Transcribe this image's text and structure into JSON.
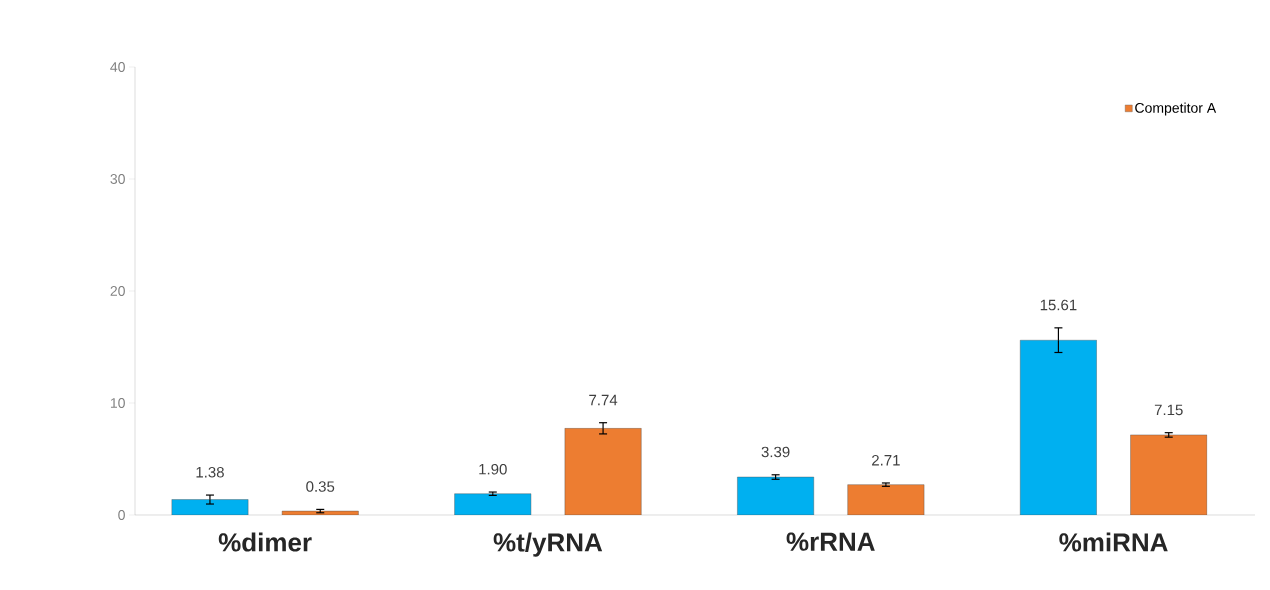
{
  "chart_data": {
    "type": "bar",
    "categories": [
      "%dimer",
      "%t/yRNA",
      "%rRNA",
      "%miRNA"
    ],
    "series": [
      {
        "color": "#00b0f0",
        "values": [
          1.38,
          1.9,
          3.39,
          15.61
        ],
        "errors": [
          0.4,
          0.15,
          0.2,
          1.1
        ],
        "value_labels": [
          "1.38",
          "1.90",
          "3.39",
          "15.61"
        ]
      },
      {
        "name": "Competitor A",
        "color": "#ed7d31",
        "values": [
          0.35,
          7.74,
          2.71,
          7.15
        ],
        "errors": [
          0.15,
          0.5,
          0.15,
          0.2
        ],
        "value_labels": [
          "0.35",
          "7.74",
          "2.71",
          "7.15"
        ]
      }
    ],
    "ylim": [
      0,
      40
    ],
    "yticks": [
      0,
      10,
      20,
      30,
      40
    ],
    "grid": false,
    "legend": "top right"
  }
}
